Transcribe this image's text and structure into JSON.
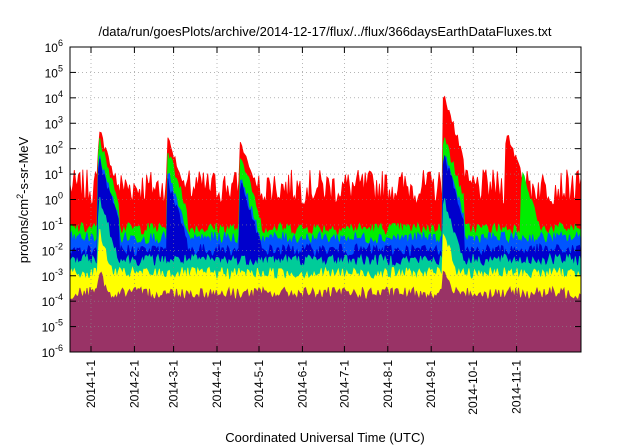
{
  "chart_data": {
    "type": "area",
    "title": "/data/run/goesPlots/archive/2014-12-17/flux/../flux/366daysEarthDataFluxes.txt",
    "xlabel": "Coordinated Universal Time (UTC)",
    "ylabel": {
      "prefix": "protons/cm",
      "sup": "2",
      "suffix": "-s-sr-MeV"
    },
    "x_scale": "time",
    "xlim": [
      "2013-12-17",
      "2014-12-17"
    ],
    "x_ticks": [
      "2014-1-1",
      "2014-2-1",
      "2014-3-1",
      "2014-4-1",
      "2014-5-1",
      "2014-6-1",
      "2014-7-1",
      "2014-8-1",
      "2014-9-1",
      "2014-10-1",
      "2014-11-1"
    ],
    "y_scale": "log",
    "ylim": [
      1e-06,
      1000000.0
    ],
    "y_ticks": [
      {
        "base": "10",
        "exp": "-6"
      },
      {
        "base": "10",
        "exp": "-5"
      },
      {
        "base": "10",
        "exp": "-4"
      },
      {
        "base": "10",
        "exp": "-3"
      },
      {
        "base": "10",
        "exp": "-2"
      },
      {
        "base": "10",
        "exp": "-1"
      },
      {
        "base": "10",
        "exp": "0"
      },
      {
        "base": "10",
        "exp": "1"
      },
      {
        "base": "10",
        "exp": "2"
      },
      {
        "base": "10",
        "exp": "3"
      },
      {
        "base": "10",
        "exp": "4"
      },
      {
        "base": "10",
        "exp": "5"
      },
      {
        "base": "10",
        "exp": "6"
      }
    ],
    "grid": true,
    "legend": "none",
    "series": [
      {
        "color": "#ff0000",
        "baseline": 3,
        "events": [
          {
            "date": "2014-01-07",
            "peak": 500
          },
          {
            "date": "2014-02-25",
            "peak": 300
          },
          {
            "date": "2014-04-18",
            "peak": 200
          },
          {
            "date": "2014-09-10",
            "peak": 12000.0
          },
          {
            "date": "2014-10-25",
            "peak": 500
          }
        ]
      },
      {
        "color": "#00ee00",
        "baseline": 0.07,
        "events": [
          {
            "date": "2014-01-07",
            "peak": 200
          },
          {
            "date": "2014-02-25",
            "peak": 80
          },
          {
            "date": "2014-04-18",
            "peak": 50
          },
          {
            "date": "2014-09-10",
            "peak": 300
          },
          {
            "date": "2014-11-05",
            "peak": 10
          }
        ]
      },
      {
        "color": "#0055ff",
        "baseline": 0.03,
        "events": [
          {
            "date": "2014-01-07",
            "peak": 40
          },
          {
            "date": "2014-02-25",
            "peak": 10
          },
          {
            "date": "2014-04-18",
            "peak": 8
          },
          {
            "date": "2014-09-10",
            "peak": 60
          }
        ]
      },
      {
        "color": "#0000cc",
        "baseline": 0.01,
        "events": [
          {
            "date": "2014-01-07",
            "peak": 30
          },
          {
            "date": "2014-02-25",
            "peak": 5
          },
          {
            "date": "2014-04-18",
            "peak": 5
          },
          {
            "date": "2014-09-10",
            "peak": 50
          }
        ]
      },
      {
        "color": "#00cc99",
        "baseline": 0.004,
        "events": [
          {
            "date": "2014-01-07",
            "peak": 1
          },
          {
            "date": "2014-09-10",
            "peak": 1
          }
        ]
      },
      {
        "color": "#ffff00",
        "baseline": 0.0012,
        "events": [
          {
            "date": "2014-01-07",
            "peak": 0.05
          },
          {
            "date": "2014-09-10",
            "peak": 0.05
          }
        ]
      },
      {
        "color": "#993366",
        "baseline": 0.0002,
        "events": [
          {
            "date": "2014-01-07",
            "peak": 0.002
          },
          {
            "date": "2014-09-10",
            "peak": 0.002
          }
        ]
      }
    ]
  }
}
